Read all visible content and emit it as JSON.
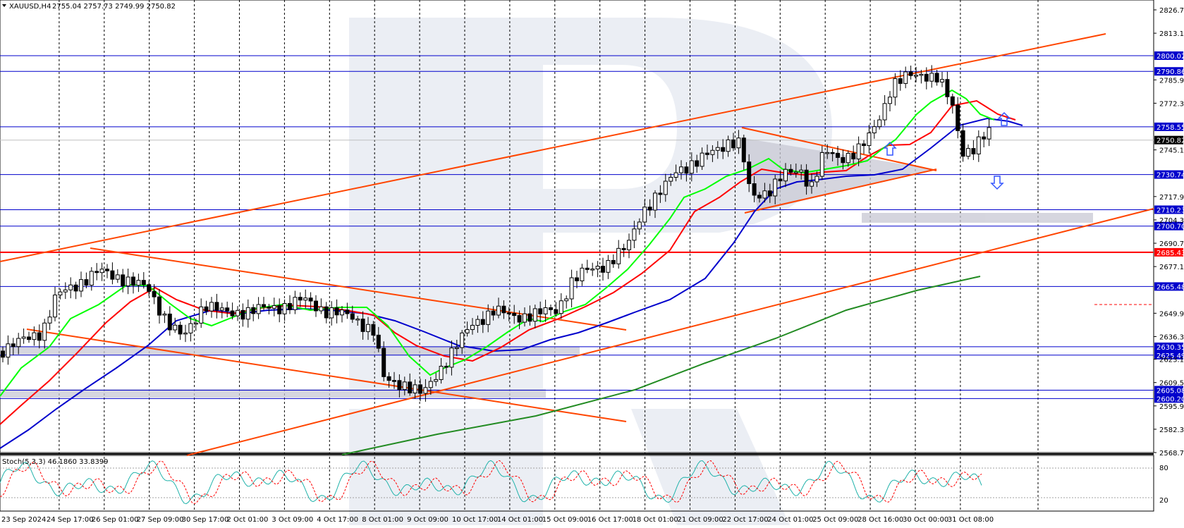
{
  "header": {
    "symbol": "XAUUSD,H4",
    "ohlc": "2755.04 2757.73 2749.99 2750.82"
  },
  "stoch_label": "Stoch(5,3,3) 46.1860 33.8399",
  "colors": {
    "accent_blue": "#0000cc",
    "support_red": "#ff0000",
    "trendline": "#ff4500",
    "ma_green": "#00cc00",
    "ma_red": "#ff0000",
    "ma_blue": "#0000cc",
    "ma_long": "#228b22",
    "zone_gray": "#c8c8d4"
  },
  "chart_data": {
    "type": "candlestick",
    "symbol": "XAUUSD",
    "timeframe": "H4",
    "last_price": 2750.82,
    "ylim": [
      2568.7,
      2830.0
    ],
    "y_ticks": [
      "2826.70",
      "2813.10",
      "2785.90",
      "2772.30",
      "2745.10",
      "2717.90",
      "2704.30",
      "2690.70",
      "2677.10",
      "2649.90",
      "2636.30",
      "2623.10",
      "2609.50",
      "2595.90",
      "2582.30",
      "2568.70"
    ],
    "x_ticks": [
      "23 Sep 2024",
      "24 Sep 17:00",
      "26 Sep 01:00",
      "27 Sep 09:00",
      "30 Sep 17:00",
      "2 Oct 01:00",
      "3 Oct 09:00",
      "4 Oct 17:00",
      "8 Oct 01:00",
      "9 Oct 09:00",
      "10 Oct 17:00",
      "14 Oct 01:00",
      "15 Oct 09:00",
      "16 Oct 17:00",
      "18 Oct 01:00",
      "21 Oct 09:00",
      "22 Oct 17:00",
      "24 Oct 01:00",
      "25 Oct 09:00",
      "28 Oct 16:00",
      "30 Oct 00:00",
      "31 Oct 08:00"
    ],
    "level_lines": [
      {
        "price": 2800.02,
        "label": "2800.02",
        "color": "#0000cc"
      },
      {
        "price": 2790.86,
        "label": "2790.86",
        "color": "#0000cc"
      },
      {
        "price": 2758.55,
        "label": "2758.55",
        "color": "#0000cc"
      },
      {
        "price": 2750.82,
        "label": "2750.82",
        "color": "#000000"
      },
      {
        "price": 2730.74,
        "label": "2730.74",
        "color": "#0000cc"
      },
      {
        "price": 2710.23,
        "label": "2710.23",
        "color": "#0000cc"
      },
      {
        "price": 2700.7,
        "label": "2700.70",
        "color": "#0000cc"
      },
      {
        "price": 2685.43,
        "label": "2685.43",
        "color": "#ff0000"
      },
      {
        "price": 2665.48,
        "label": "2665.48",
        "color": "#0000cc"
      },
      {
        "price": 2630.35,
        "label": "2630.35",
        "color": "#0000cc"
      },
      {
        "price": 2625.49,
        "label": "2625.49",
        "color": "#0000cc"
      },
      {
        "price": 2605.08,
        "label": "2605.08",
        "color": "#0000cc"
      },
      {
        "price": 2600.2,
        "label": "2600.20",
        "color": "#0000cc"
      }
    ],
    "stoch": {
      "k": 46.186,
      "d": 33.8399,
      "levels": [
        "80",
        "20"
      ]
    }
  }
}
